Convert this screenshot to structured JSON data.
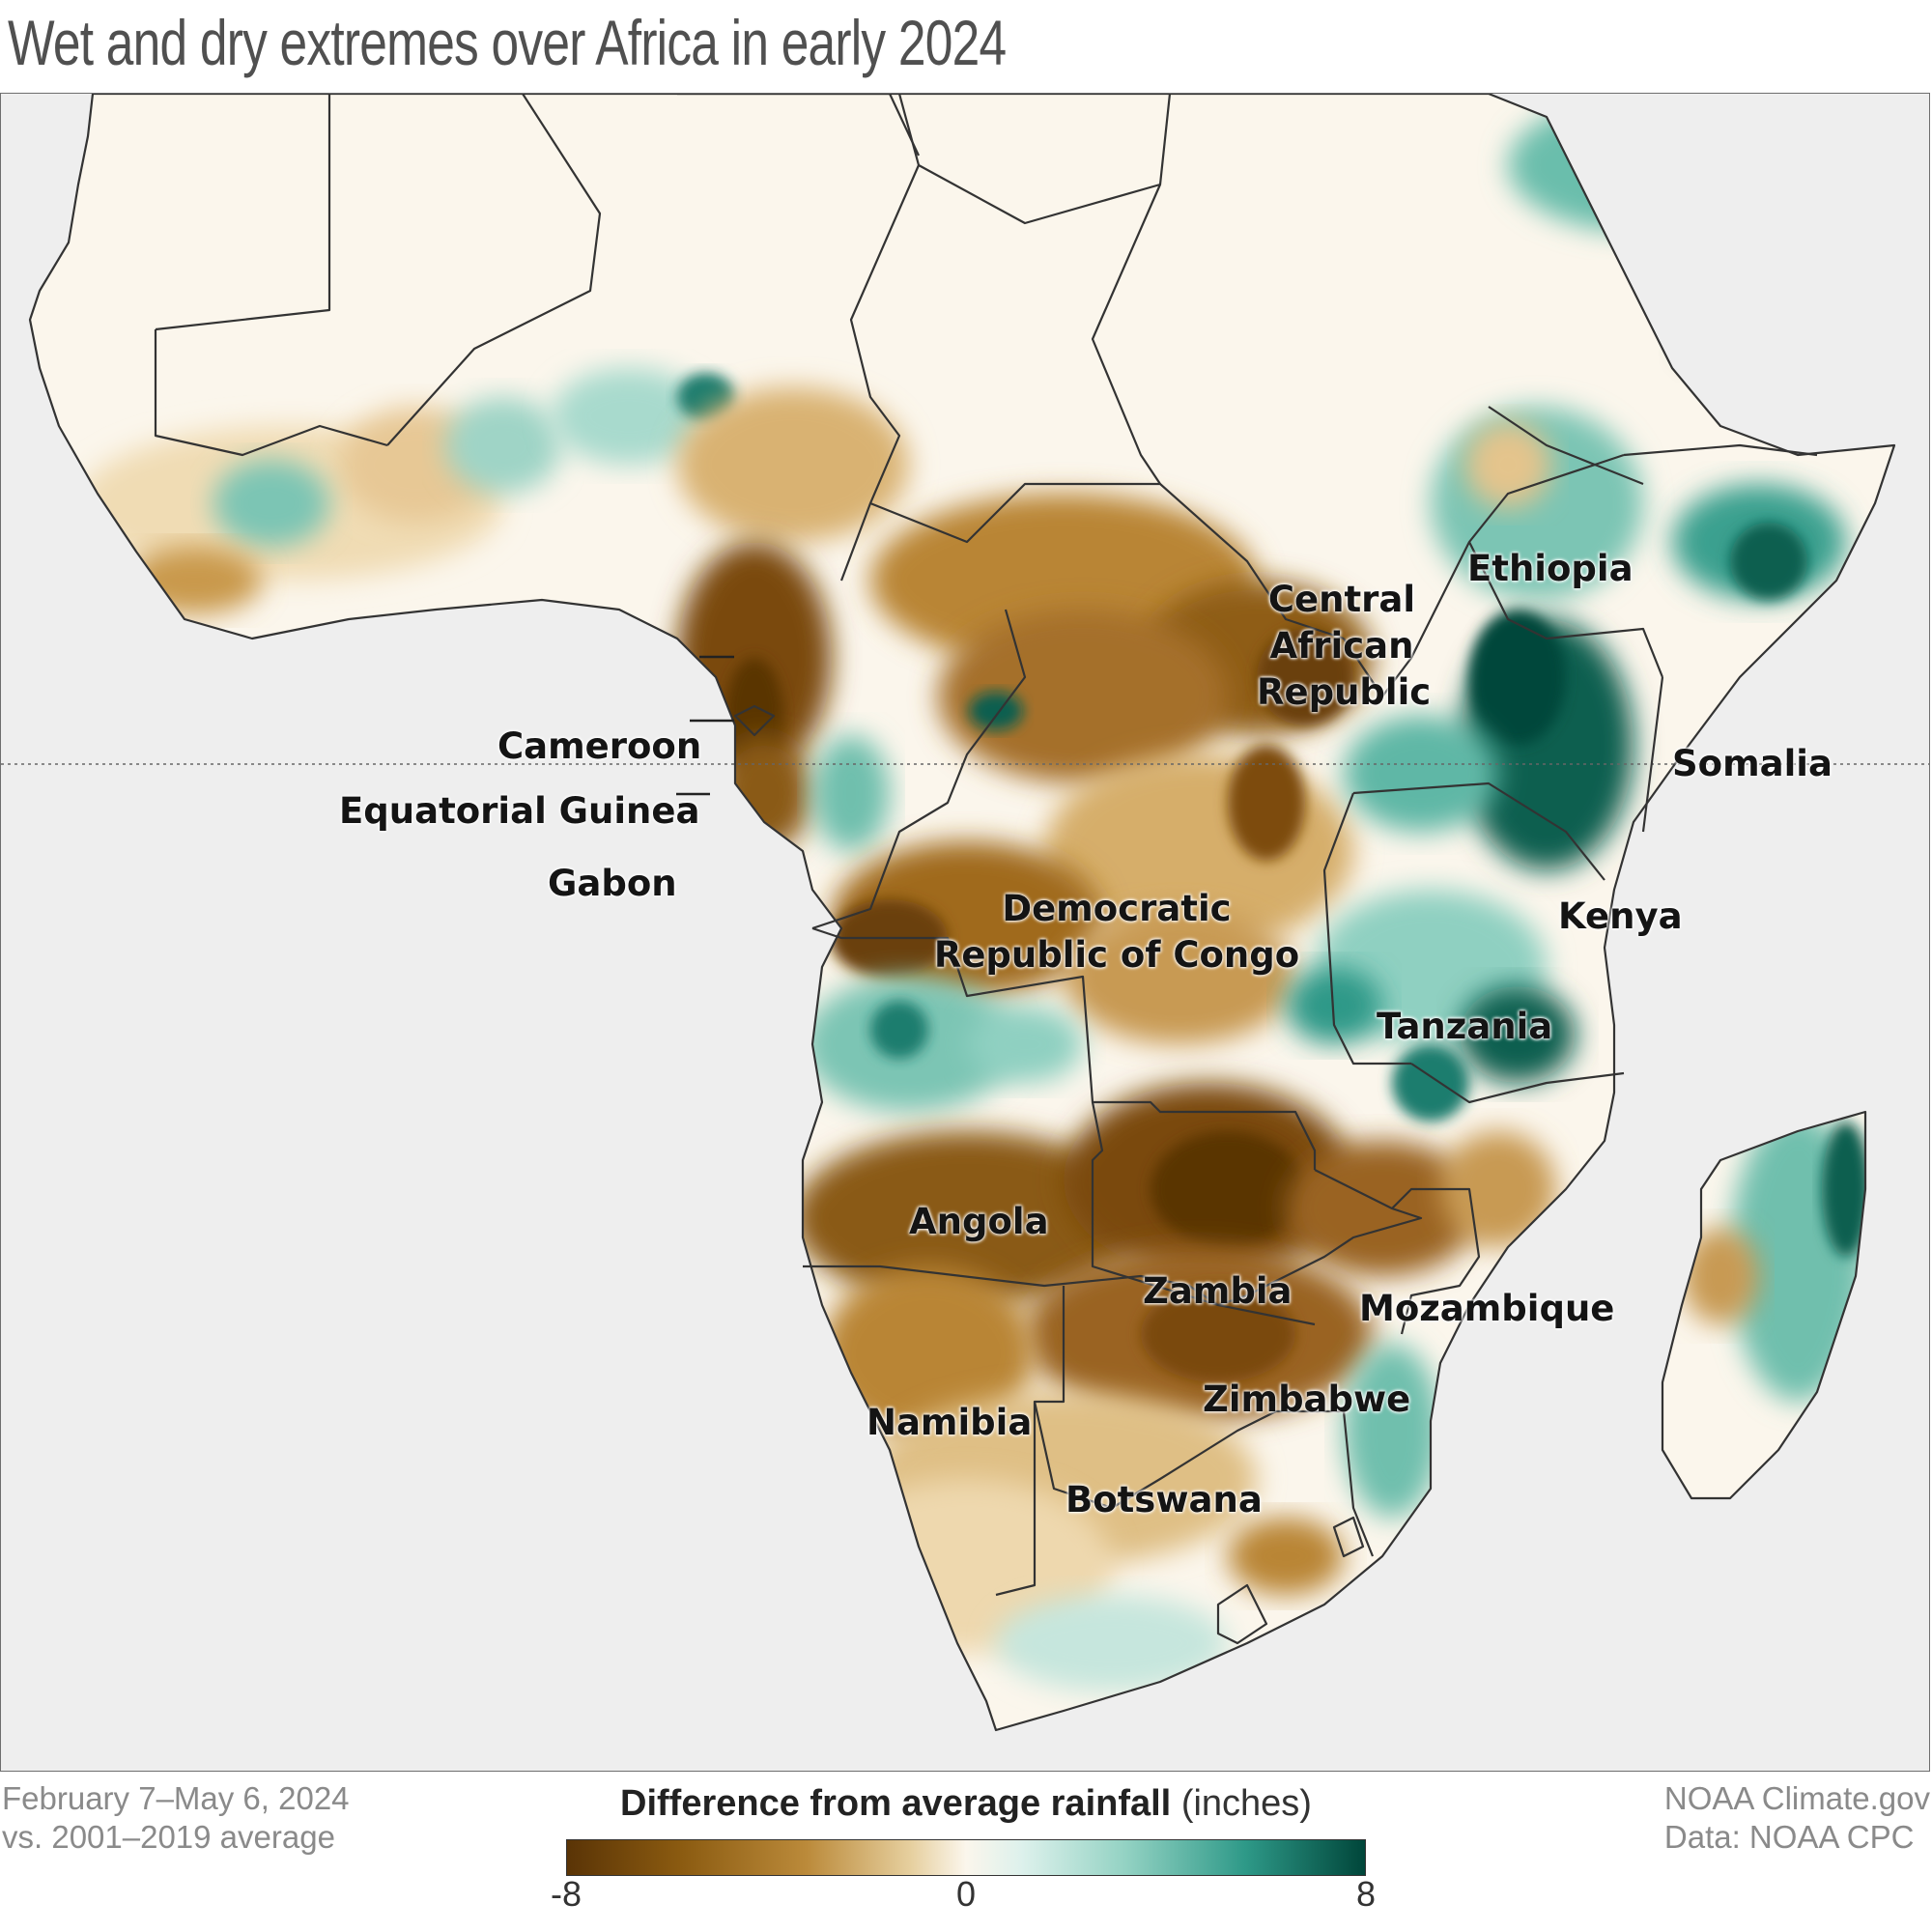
{
  "title": "Wet and dry extremes over Africa in early 2024",
  "map": {
    "region": "Africa",
    "variable": "Difference from average rainfall",
    "equator_line": true,
    "country_labels": {
      "cameroon": "Cameroon",
      "equatorial_guinea": "Equatorial Guinea",
      "gabon": "Gabon",
      "car_1": "Central",
      "car_2": "African",
      "car_3": "Republic",
      "ethiopia": "Ethiopia",
      "somalia": "Somalia",
      "kenya": "Kenya",
      "drc_1": "Democratic",
      "drc_2": "Republic of Congo",
      "tanzania": "Tanzania",
      "angola": "Angola",
      "zambia": "Zambia",
      "mozambique": "Mozambique",
      "namibia": "Namibia",
      "zimbabwe": "Zimbabwe",
      "botswana": "Botswana"
    },
    "colors": {
      "ocean": "#eeeeee",
      "very_dry": "#5a3406",
      "dry": "#a06a1e",
      "neutral": "#fbf6ec",
      "wet": "#5fb7a6",
      "very_wet": "#00463a",
      "border": "#333333"
    }
  },
  "footer": {
    "period_line1": "February 7–May 6, 2024",
    "period_line2": "vs. 2001–2019 average",
    "source_line1": "NOAA Climate.gov",
    "source_line2": "Data: NOAA CPC"
  },
  "legend": {
    "title_bold": "Difference from average rainfall",
    "title_unit": "(inches)",
    "tick_min": "-8",
    "tick_mid": "0",
    "tick_max": "8",
    "range": [
      -8,
      8
    ]
  }
}
